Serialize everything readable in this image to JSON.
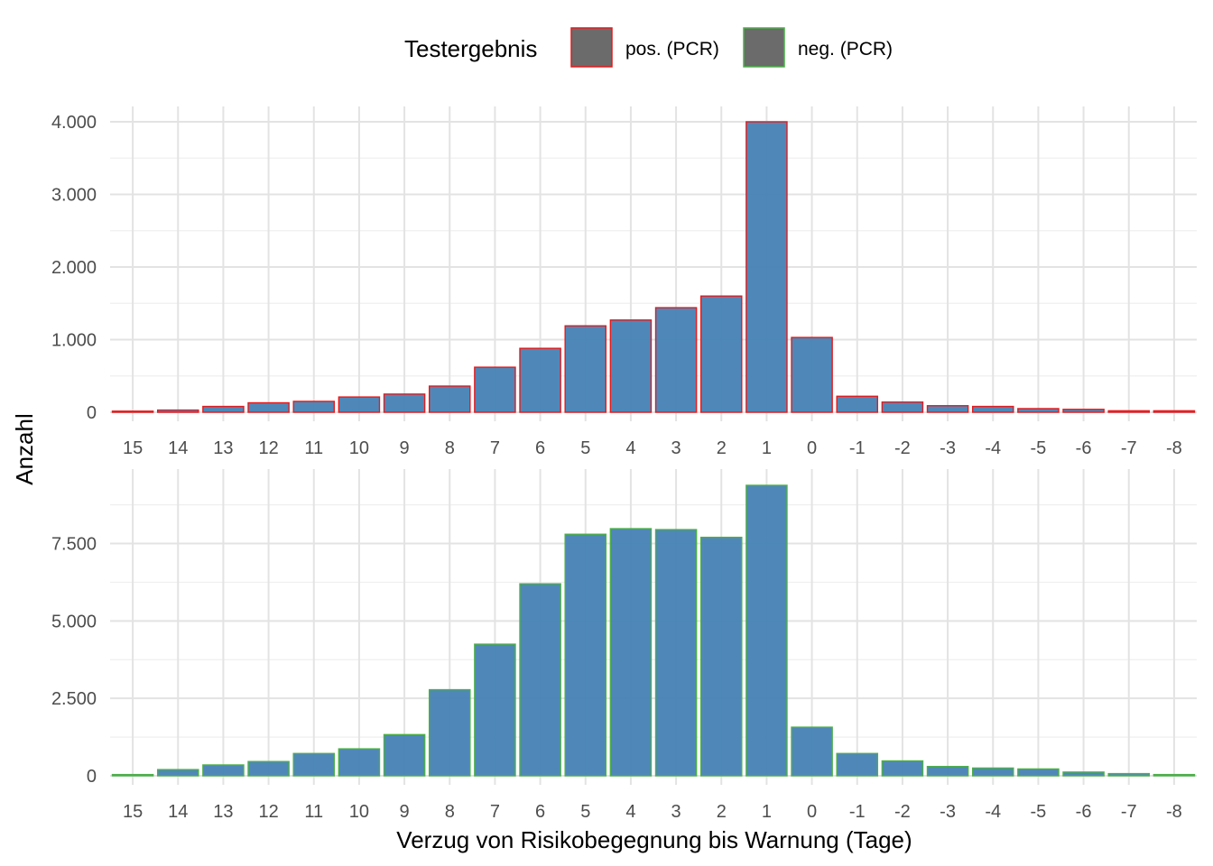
{
  "chart_data": {
    "type": "bar",
    "xlabel": "Verzug von Risikobegegnung bis Warnung (Tage)",
    "ylabel": "Anzahl",
    "categories": [
      "15",
      "14",
      "13",
      "12",
      "11",
      "10",
      "9",
      "8",
      "7",
      "6",
      "5",
      "4",
      "3",
      "2",
      "1",
      "0",
      "-1",
      "-2",
      "-3",
      "-4",
      "-5",
      "-6",
      "-7",
      "-8"
    ],
    "legend": {
      "title": "Testergebnis",
      "position": "top",
      "entries": [
        {
          "label": "pos. (PCR)",
          "outline_color": "#e41a1c"
        },
        {
          "label": "neg. (PCR)",
          "outline_color": "#4daf4a"
        }
      ]
    },
    "fill_color": "#4682b4",
    "grid": true,
    "panels": [
      {
        "series": "pos. (PCR)",
        "outline_color": "#e41a1c",
        "values": [
          10,
          30,
          80,
          130,
          150,
          210,
          250,
          360,
          620,
          880,
          1190,
          1270,
          1440,
          1600,
          4000,
          1030,
          220,
          140,
          90,
          80,
          50,
          40,
          20,
          20
        ],
        "ylim": [
          0,
          4000
        ],
        "yticks": [
          0,
          1000,
          2000,
          3000,
          4000
        ],
        "ytick_labels": [
          "0",
          "1.000",
          "2.000",
          "3.000",
          "4.000"
        ]
      },
      {
        "series": "neg. (PCR)",
        "outline_color": "#4daf4a",
        "values": [
          40,
          200,
          350,
          460,
          720,
          870,
          1330,
          2780,
          4250,
          6200,
          7800,
          7980,
          7950,
          7700,
          9380,
          1570,
          720,
          480,
          300,
          250,
          220,
          120,
          70,
          40
        ],
        "ylim": [
          0,
          9380
        ],
        "yticks": [
          0,
          2500,
          5000,
          7500
        ],
        "ytick_labels": [
          "0",
          "2.500",
          "5.000",
          "7.500"
        ]
      }
    ]
  }
}
